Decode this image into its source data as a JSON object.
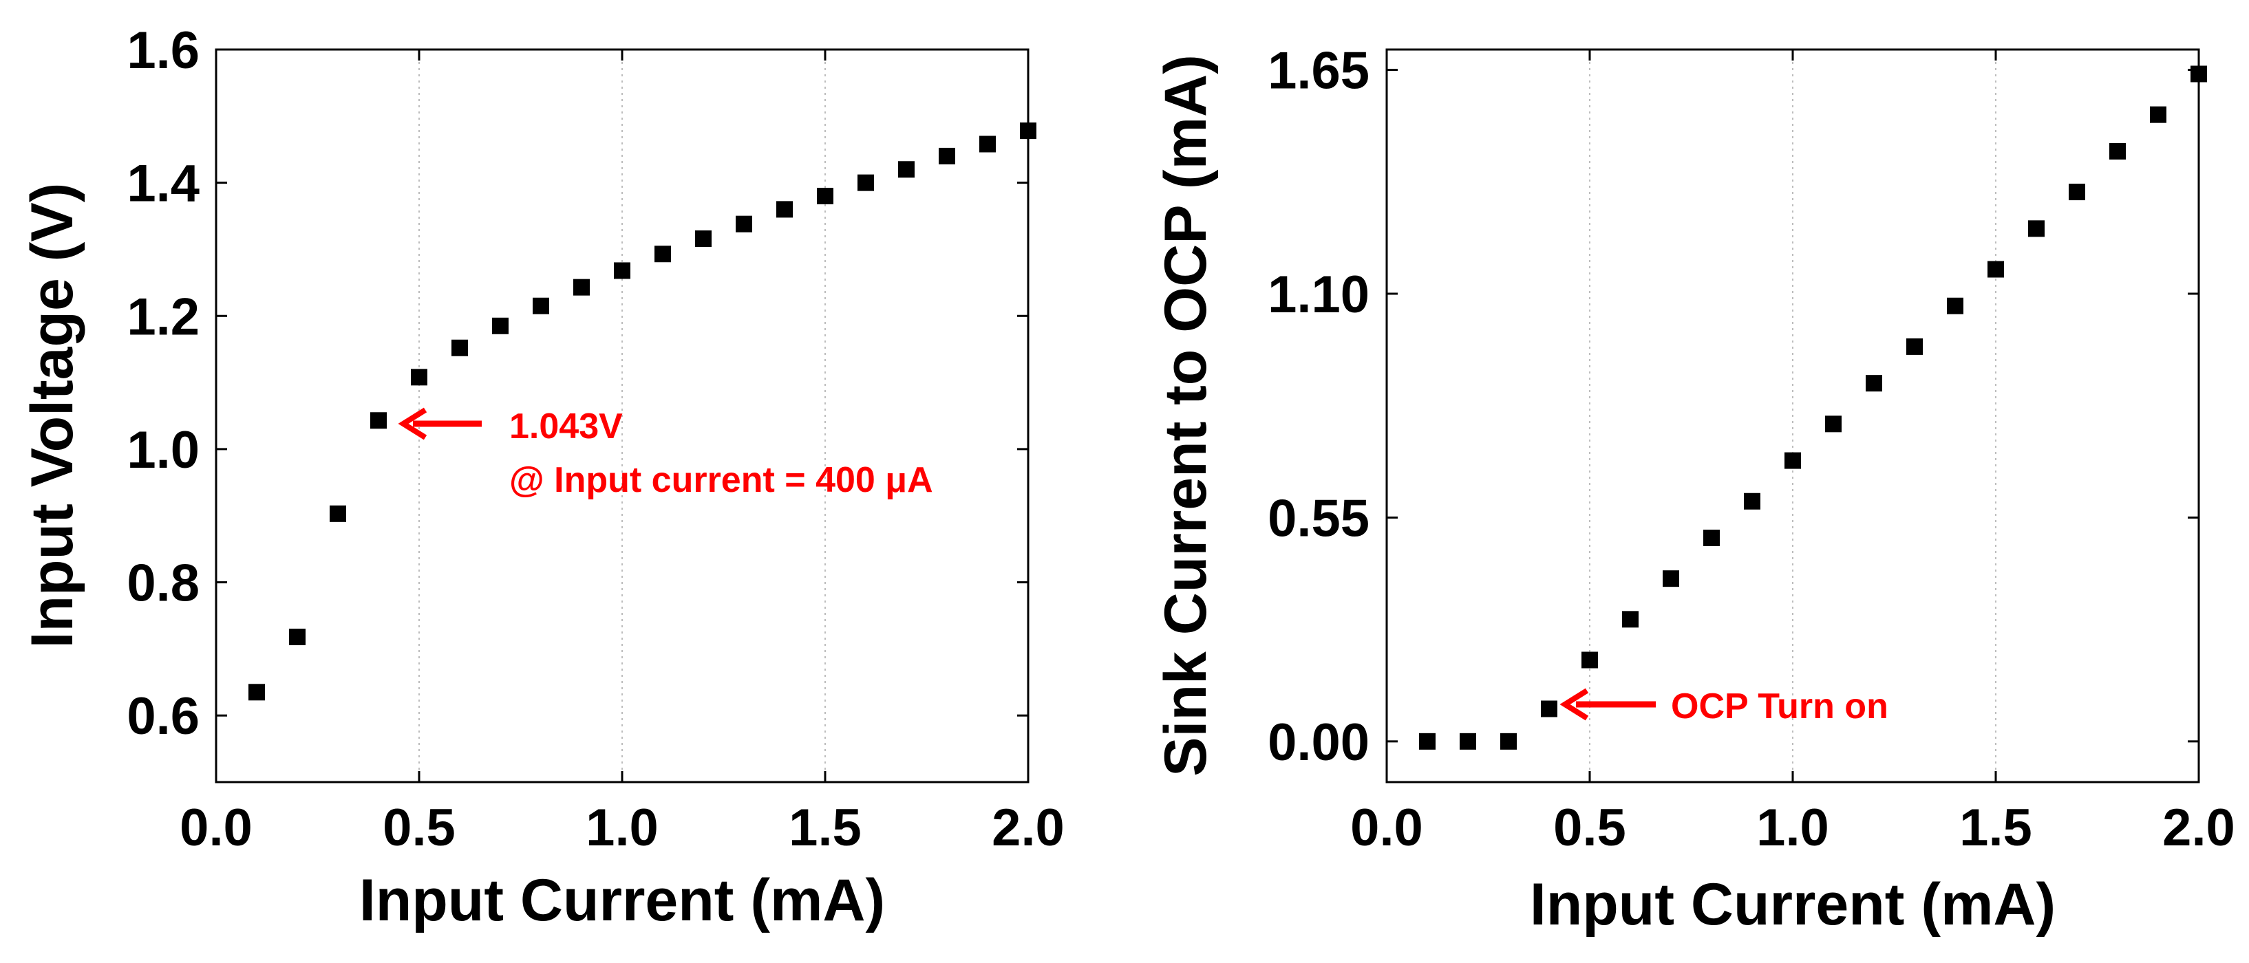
{
  "chart_data": [
    {
      "type": "scatter",
      "xlabel": "Input Current (mA)",
      "ylabel": "Input Voltage (V)",
      "xlim": [
        0.0,
        2.0
      ],
      "ylim": [
        0.5,
        1.6
      ],
      "xticks": [
        "0.0",
        "0.5",
        "1.0",
        "1.5",
        "2.0"
      ],
      "xtick_values": [
        0.0,
        0.5,
        1.0,
        1.5,
        2.0
      ],
      "yticks": [
        "0.6",
        "0.8",
        "1.0",
        "1.2",
        "1.4",
        "1.6"
      ],
      "ytick_values": [
        0.6,
        0.8,
        1.0,
        1.2,
        1.4,
        1.6
      ],
      "grid": "vertical dotted",
      "series": [
        {
          "name": "Input Voltage",
          "x": [
            0.1,
            0.2,
            0.3,
            0.4,
            0.5,
            0.6,
            0.7,
            0.8,
            0.9,
            1.0,
            1.1,
            1.2,
            1.3,
            1.4,
            1.5,
            1.6,
            1.7,
            1.8,
            1.9,
            2.0
          ],
          "y": [
            0.635,
            0.718,
            0.903,
            1.043,
            1.108,
            1.152,
            1.185,
            1.215,
            1.243,
            1.268,
            1.293,
            1.316,
            1.338,
            1.36,
            1.38,
            1.4,
            1.42,
            1.44,
            1.458,
            1.478
          ]
        }
      ],
      "annotation": {
        "line1": "1.043V",
        "line2": "@ Input current = 400 μA",
        "target_x": 0.4,
        "target_y": 1.043,
        "color": "#ff0000"
      }
    },
    {
      "type": "scatter",
      "xlabel": "Input Current (mA)",
      "ylabel": "Sink Current to OCP (mA)",
      "xlim": [
        0.0,
        2.0
      ],
      "ylim": [
        -0.1,
        1.7
      ],
      "xticks": [
        "0.0",
        "0.5",
        "1.0",
        "1.5",
        "2.0"
      ],
      "xtick_values": [
        0.0,
        0.5,
        1.0,
        1.5,
        2.0
      ],
      "yticks": [
        "0.00",
        "0.55",
        "1.10",
        "1.65"
      ],
      "ytick_values": [
        0.0,
        0.55,
        1.1,
        1.65
      ],
      "grid": "vertical dotted",
      "series": [
        {
          "name": "Sink Current",
          "x": [
            0.1,
            0.2,
            0.3,
            0.4,
            0.5,
            0.6,
            0.7,
            0.8,
            0.9,
            1.0,
            1.1,
            1.2,
            1.3,
            1.4,
            1.5,
            1.6,
            1.7,
            1.8,
            1.9,
            2.0
          ],
          "y": [
            0.0,
            0.0,
            0.0,
            0.08,
            0.2,
            0.3,
            0.4,
            0.5,
            0.59,
            0.69,
            0.78,
            0.88,
            0.97,
            1.07,
            1.16,
            1.26,
            1.35,
            1.45,
            1.54,
            1.64
          ]
        }
      ],
      "annotation": {
        "line1": "OCP Turn on",
        "target_x": 0.4,
        "target_y": 0.08,
        "color": "#ff0000"
      }
    }
  ]
}
